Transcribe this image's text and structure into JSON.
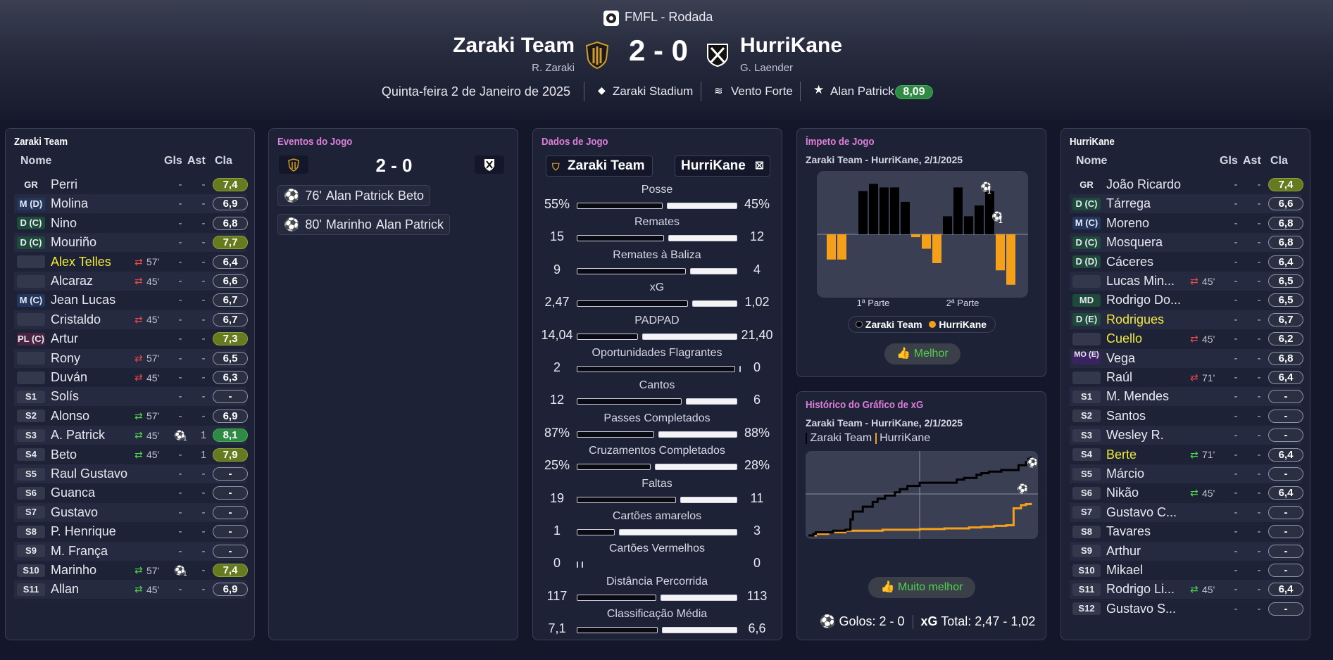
{
  "header": {
    "competition": "FMFL - Rodada",
    "home": {
      "name": "Zaraki Team",
      "manager": "R. Zaraki"
    },
    "away": {
      "name": "HurriKane",
      "manager": "G. Laender"
    },
    "score": "2 - 0",
    "date": "Quinta-feira 2 de Janeiro de 2025",
    "stadium": "Zaraki Stadium",
    "weather": "Vento Forte",
    "mvp": {
      "name": "Alan Patrick",
      "rating": "8,09"
    }
  },
  "columns": {
    "name": "Nome",
    "goals": "Gls",
    "assists": "Ast",
    "rating": "Cla"
  },
  "home_team": {
    "title": "Zaraki Team",
    "players": [
      {
        "pos": "GR",
        "pos_bg": "",
        "name": "Perri",
        "hl": false,
        "sub": "",
        "gls": "-",
        "ast": "-",
        "goal_icon": "",
        "rating": "7,4",
        "rc": "y"
      },
      {
        "pos": "M (D)",
        "pos_bg": "#23375e",
        "name": "Molina",
        "hl": false,
        "sub": "",
        "gls": "-",
        "ast": "-",
        "goal_icon": "",
        "rating": "6,9",
        "rc": ""
      },
      {
        "pos": "D (C)",
        "pos_bg": "#1d4a3a",
        "name": "Nino",
        "hl": false,
        "sub": "",
        "gls": "-",
        "ast": "-",
        "goal_icon": "",
        "rating": "6,8",
        "rc": ""
      },
      {
        "pos": "D (C)",
        "pos_bg": "#1d4a3a",
        "name": "Mouriño",
        "hl": false,
        "sub": "",
        "gls": "-",
        "ast": "-",
        "goal_icon": "",
        "rating": "7,7",
        "rc": "y"
      },
      {
        "pos": "",
        "pos_bg": "#34384c",
        "name": "Alex Telles",
        "hl": true,
        "sub": "57'",
        "sub_dir": "out",
        "gls": "-",
        "ast": "-",
        "goal_icon": "",
        "rating": "6,4",
        "rc": ""
      },
      {
        "pos": "",
        "pos_bg": "#34384c",
        "name": "Alcaraz",
        "hl": false,
        "sub": "45'",
        "sub_dir": "out",
        "gls": "-",
        "ast": "-",
        "goal_icon": "",
        "rating": "6,6",
        "rc": ""
      },
      {
        "pos": "M (C)",
        "pos_bg": "#23375e",
        "name": "Jean Lucas",
        "hl": false,
        "sub": "",
        "gls": "-",
        "ast": "-",
        "goal_icon": "",
        "rating": "6,7",
        "rc": ""
      },
      {
        "pos": "",
        "pos_bg": "#34384c",
        "name": "Cristaldo",
        "hl": false,
        "sub": "45'",
        "sub_dir": "out",
        "gls": "-",
        "ast": "-",
        "goal_icon": "",
        "rating": "6,7",
        "rc": ""
      },
      {
        "pos": "PL (C)",
        "pos_bg": "#4a2342",
        "name": "Artur",
        "hl": false,
        "sub": "",
        "gls": "-",
        "ast": "-",
        "goal_icon": "",
        "rating": "7,3",
        "rc": "y"
      },
      {
        "pos": "",
        "pos_bg": "#34384c",
        "name": "Rony",
        "hl": false,
        "sub": "57'",
        "sub_dir": "out",
        "gls": "-",
        "ast": "-",
        "goal_icon": "",
        "rating": "6,5",
        "rc": ""
      },
      {
        "pos": "",
        "pos_bg": "#34384c",
        "name": "Duván",
        "hl": false,
        "sub": "45'",
        "sub_dir": "out",
        "gls": "-",
        "ast": "-",
        "goal_icon": "",
        "rating": "6,3",
        "rc": ""
      },
      {
        "pos": "S1",
        "pos_bg": "#34384c",
        "name": "Solís",
        "hl": false,
        "sub": "",
        "gls": "-",
        "ast": "-",
        "goal_icon": "",
        "rating": "-",
        "rc": ""
      },
      {
        "pos": "S2",
        "pos_bg": "#34384c",
        "name": "Alonso",
        "hl": false,
        "sub": "57'",
        "sub_dir": "in",
        "gls": "-",
        "ast": "-",
        "goal_icon": "",
        "rating": "6,9",
        "rc": ""
      },
      {
        "pos": "S3",
        "pos_bg": "#34384c",
        "name": "A. Patrick",
        "hl": false,
        "sub": "45'",
        "sub_dir": "in",
        "gls": "",
        "ast": "1",
        "goal_icon": "1",
        "rating": "8,1",
        "rc": "g"
      },
      {
        "pos": "S4",
        "pos_bg": "#34384c",
        "name": "Beto",
        "hl": false,
        "sub": "45'",
        "sub_dir": "in",
        "gls": "-",
        "ast": "1",
        "goal_icon": "",
        "rating": "7,9",
        "rc": "y"
      },
      {
        "pos": "S5",
        "pos_bg": "#34384c",
        "name": "Raul Gustavo",
        "hl": false,
        "sub": "",
        "gls": "-",
        "ast": "-",
        "goal_icon": "",
        "rating": "-",
        "rc": ""
      },
      {
        "pos": "S6",
        "pos_bg": "#34384c",
        "name": "Guanca",
        "hl": false,
        "sub": "",
        "gls": "-",
        "ast": "-",
        "goal_icon": "",
        "rating": "-",
        "rc": ""
      },
      {
        "pos": "S7",
        "pos_bg": "#34384c",
        "name": "Gustavo",
        "hl": false,
        "sub": "",
        "gls": "-",
        "ast": "-",
        "goal_icon": "",
        "rating": "-",
        "rc": ""
      },
      {
        "pos": "S8",
        "pos_bg": "#34384c",
        "name": "P. Henrique",
        "hl": false,
        "sub": "",
        "gls": "-",
        "ast": "-",
        "goal_icon": "",
        "rating": "-",
        "rc": ""
      },
      {
        "pos": "S9",
        "pos_bg": "#34384c",
        "name": "M. França",
        "hl": false,
        "sub": "",
        "gls": "-",
        "ast": "-",
        "goal_icon": "",
        "rating": "-",
        "rc": ""
      },
      {
        "pos": "S10",
        "pos_bg": "#34384c",
        "name": "Marinho",
        "hl": false,
        "sub": "57'",
        "sub_dir": "in",
        "gls": "",
        "ast": "-",
        "goal_icon": "1",
        "rating": "7,4",
        "rc": "y"
      },
      {
        "pos": "S11",
        "pos_bg": "#34384c",
        "name": "Allan",
        "hl": false,
        "sub": "45'",
        "sub_dir": "in",
        "gls": "-",
        "ast": "-",
        "goal_icon": "",
        "rating": "6,9",
        "rc": ""
      }
    ]
  },
  "away_team": {
    "title": "HurriKane",
    "players": [
      {
        "pos": "GR",
        "pos_bg": "",
        "name": "João Ricardo",
        "hl": false,
        "sub": "",
        "gls": "-",
        "ast": "-",
        "rating": "7,4",
        "rc": "y"
      },
      {
        "pos": "D (C)",
        "pos_bg": "#1d4a3a",
        "name": "Tárrega",
        "hl": false,
        "sub": "",
        "gls": "-",
        "ast": "-",
        "rating": "6,6",
        "rc": ""
      },
      {
        "pos": "M (C)",
        "pos_bg": "#23375e",
        "name": "Moreno",
        "hl": false,
        "sub": "",
        "gls": "-",
        "ast": "-",
        "rating": "6,8",
        "rc": ""
      },
      {
        "pos": "D (C)",
        "pos_bg": "#1d4a3a",
        "name": "Mosquera",
        "hl": false,
        "sub": "",
        "gls": "-",
        "ast": "-",
        "rating": "6,8",
        "rc": ""
      },
      {
        "pos": "D (D)",
        "pos_bg": "#1d4a3a",
        "name": "Cáceres",
        "hl": false,
        "sub": "",
        "gls": "-",
        "ast": "-",
        "rating": "6,4",
        "rc": ""
      },
      {
        "pos": "",
        "pos_bg": "#34384c",
        "name": "Lucas Min...",
        "hl": false,
        "sub": "45'",
        "sub_dir": "out",
        "gls": "-",
        "ast": "-",
        "rating": "6,5",
        "rc": ""
      },
      {
        "pos": "MD",
        "pos_bg": "#1d4a3a",
        "name": "Rodrigo Do...",
        "hl": false,
        "sub": "",
        "gls": "-",
        "ast": "-",
        "rating": "6,5",
        "rc": ""
      },
      {
        "pos": "D (E)",
        "pos_bg": "#1d4a3a",
        "name": "Rodrigues",
        "hl": true,
        "sub": "",
        "gls": "-",
        "ast": "-",
        "rating": "6,7",
        "rc": ""
      },
      {
        "pos": "",
        "pos_bg": "#34384c",
        "name": "Cuello",
        "hl": true,
        "sub": "45'",
        "sub_dir": "out",
        "gls": "-",
        "ast": "-",
        "rating": "6,2",
        "rc": ""
      },
      {
        "pos": "MO (E)",
        "pos_bg": "#3a2460",
        "name": "Vega",
        "hl": false,
        "sub": "",
        "gls": "-",
        "ast": "-",
        "rating": "6,8",
        "rc": ""
      },
      {
        "pos": "",
        "pos_bg": "#34384c",
        "name": "Raúl",
        "hl": false,
        "sub": "71'",
        "sub_dir": "out",
        "gls": "-",
        "ast": "-",
        "rating": "6,4",
        "rc": ""
      },
      {
        "pos": "S1",
        "pos_bg": "#34384c",
        "name": "M. Mendes",
        "hl": false,
        "sub": "",
        "gls": "-",
        "ast": "-",
        "rating": "-",
        "rc": ""
      },
      {
        "pos": "S2",
        "pos_bg": "#34384c",
        "name": "Santos",
        "hl": false,
        "sub": "",
        "gls": "-",
        "ast": "-",
        "rating": "-",
        "rc": ""
      },
      {
        "pos": "S3",
        "pos_bg": "#34384c",
        "name": "Wesley R.",
        "hl": false,
        "sub": "",
        "gls": "-",
        "ast": "-",
        "rating": "-",
        "rc": ""
      },
      {
        "pos": "S4",
        "pos_bg": "#34384c",
        "name": "Berte",
        "hl": true,
        "sub": "71'",
        "sub_dir": "in",
        "gls": "-",
        "ast": "-",
        "rating": "6,4",
        "rc": ""
      },
      {
        "pos": "S5",
        "pos_bg": "#34384c",
        "name": "Márcio",
        "hl": false,
        "sub": "",
        "gls": "-",
        "ast": "-",
        "rating": "-",
        "rc": ""
      },
      {
        "pos": "S6",
        "pos_bg": "#34384c",
        "name": "Nikão",
        "hl": false,
        "sub": "45'",
        "sub_dir": "in",
        "gls": "-",
        "ast": "-",
        "rating": "6,4",
        "rc": ""
      },
      {
        "pos": "S7",
        "pos_bg": "#34384c",
        "name": "Gustavo C...",
        "hl": false,
        "sub": "",
        "gls": "-",
        "ast": "-",
        "rating": "-",
        "rc": ""
      },
      {
        "pos": "S8",
        "pos_bg": "#34384c",
        "name": "Tavares",
        "hl": false,
        "sub": "",
        "gls": "-",
        "ast": "-",
        "rating": "-",
        "rc": ""
      },
      {
        "pos": "S9",
        "pos_bg": "#34384c",
        "name": "Arthur",
        "hl": false,
        "sub": "",
        "gls": "-",
        "ast": "-",
        "rating": "-",
        "rc": ""
      },
      {
        "pos": "S10",
        "pos_bg": "#34384c",
        "name": "Mikael",
        "hl": false,
        "sub": "",
        "gls": "-",
        "ast": "-",
        "rating": "-",
        "rc": ""
      },
      {
        "pos": "S11",
        "pos_bg": "#34384c",
        "name": "Rodrigo Li...",
        "hl": false,
        "sub": "45'",
        "sub_dir": "in",
        "gls": "-",
        "ast": "-",
        "rating": "6,4",
        "rc": ""
      },
      {
        "pos": "S12",
        "pos_bg": "#34384c",
        "name": "Gustavo S...",
        "hl": false,
        "sub": "",
        "gls": "-",
        "ast": "-",
        "rating": "-",
        "rc": ""
      }
    ]
  },
  "events": {
    "title": "Eventos do Jogo",
    "score": "2 - 0",
    "items": [
      {
        "minute": "76'",
        "scorer": "Alan Patrick",
        "assist": "Beto"
      },
      {
        "minute": "80'",
        "scorer": "Marinho",
        "assist": "Alan Patrick"
      }
    ]
  },
  "stats": {
    "title": "Dados de Jogo",
    "home_label": "Zaraki Team",
    "away_label": "HurriKane",
    "items": [
      {
        "label": "Posse",
        "home": "55%",
        "away": "45%",
        "hv": 55,
        "av": 45
      },
      {
        "label": "Remates",
        "home": "15",
        "away": "12",
        "hv": 15,
        "av": 12
      },
      {
        "label": "Remates à Baliza",
        "home": "9",
        "away": "4",
        "hv": 9,
        "av": 4
      },
      {
        "label": "xG",
        "home": "2,47",
        "away": "1,02",
        "hv": 2.47,
        "av": 1.02
      },
      {
        "label": "PADPAD",
        "home": "14,04",
        "away": "21,40",
        "hv": 14.04,
        "av": 21.4
      },
      {
        "label": "Oportunidades Flagrantes",
        "home": "2",
        "away": "0",
        "hv": 2,
        "av": 0
      },
      {
        "label": "Cantos",
        "home": "12",
        "away": "6",
        "hv": 12,
        "av": 6
      },
      {
        "label": "Passes Completados",
        "home": "87%",
        "away": "88%",
        "hv": 87,
        "av": 88
      },
      {
        "label": "Cruzamentos Completados",
        "home": "25%",
        "away": "28%",
        "hv": 25,
        "av": 28
      },
      {
        "label": "Faltas",
        "home": "19",
        "away": "11",
        "hv": 19,
        "av": 11
      },
      {
        "label": "Cartões amarelos",
        "home": "1",
        "away": "3",
        "hv": 1,
        "av": 3
      },
      {
        "label": "Cartões Vermelhos",
        "home": "0",
        "away": "0",
        "hv": 0,
        "av": 0
      },
      {
        "label": "Distância Percorrida",
        "home": "117",
        "away": "113",
        "hv": 117,
        "av": 113
      },
      {
        "label": "Classificação Média",
        "home": "7,1",
        "away": "6,6",
        "hv": 7.1,
        "av": 6.6
      }
    ]
  },
  "momentum": {
    "title": "Ímpeto de Jogo",
    "subtitle": "Zaraki Team - HurriKane, 2/1/2025",
    "half1": "1ª Parte",
    "half2": "2ª Parte",
    "legend_home": "Zaraki Team",
    "legend_away": "HurriKane",
    "home_color": "#000000",
    "away_color": "#f5a01a",
    "verdict": "Melhor",
    "goal_markers": [
      "1",
      "1"
    ]
  },
  "xg_history": {
    "title": "Histórico do Gráfico de xG",
    "subtitle": "Zaraki Team - HurriKane, 2/1/2025",
    "legend_home": "Zaraki Team",
    "legend_away": "HurriKane",
    "verdict": "Muito melhor",
    "goals_label": "Golos:",
    "goals_value": "2 - 0",
    "xg_label": "xG",
    "xg_total_label": "Total:",
    "xg_value": "2,47 - 1,02"
  },
  "chart_data": [
    {
      "type": "bar",
      "title": "Ímpeto de Jogo",
      "subtitle": "Zaraki Team - HurriKane, 2/1/2025",
      "categories": [
        "1",
        "2",
        "3",
        "4",
        "5",
        "6",
        "7",
        "8",
        "9",
        "10",
        "11",
        "12",
        "13",
        "14",
        "15",
        "16",
        "17",
        "18",
        "19"
      ],
      "series": [
        {
          "name": "Zaraki Team",
          "values": [
            0,
            0,
            0,
            6,
            7,
            6.5,
            6.5,
            4.5,
            0,
            0,
            0,
            2.5,
            6.5,
            2.5,
            4,
            6,
            0,
            0,
            0
          ]
        },
        {
          "name": "HurriKane",
          "values": [
            -3.5,
            -3.5,
            0,
            0,
            0,
            0,
            0,
            0,
            -0.4,
            -2,
            -4,
            0,
            0,
            0,
            0,
            0,
            -5,
            -7,
            0
          ]
        }
      ],
      "xlabel": "",
      "ylabel": "",
      "ylim": [
        -8,
        8
      ],
      "legend": "bottom"
    },
    {
      "type": "line",
      "title": "Histórico do Gráfico de xG",
      "subtitle": "Zaraki Team - HurriKane, 2/1/2025",
      "series": [
        {
          "name": "Zaraki Team",
          "x": [
            0,
            2,
            3,
            10,
            15,
            17,
            18,
            22,
            26,
            28,
            31,
            35,
            37,
            40,
            45,
            55,
            60,
            63,
            65,
            68,
            70,
            72,
            73,
            78,
            85,
            88,
            89,
            90
          ],
          "y": [
            0,
            0.05,
            0.1,
            0.15,
            0.18,
            0.5,
            0.75,
            0.9,
            1.05,
            1.15,
            1.25,
            1.35,
            1.45,
            1.55,
            1.65,
            1.65,
            1.75,
            1.8,
            1.8,
            1.9,
            1.95,
            1.95,
            2.0,
            2.05,
            2.2,
            2.3,
            2.4,
            2.47
          ]
        },
        {
          "name": "HurriKane",
          "x": [
            0,
            3,
            8,
            15,
            30,
            45,
            55,
            65,
            70,
            75,
            80,
            83,
            86,
            88,
            90
          ],
          "y": [
            0,
            0.05,
            0.1,
            0.15,
            0.18,
            0.2,
            0.22,
            0.25,
            0.27,
            0.3,
            0.32,
            0.85,
            0.95,
            0.98,
            1.02
          ]
        }
      ],
      "xlim": [
        0,
        90
      ],
      "ylim": [
        0,
        2.6
      ],
      "xlabel": "",
      "ylabel": "",
      "annotations": [
        "goal at 76'",
        "goal at 80'"
      ]
    }
  ]
}
